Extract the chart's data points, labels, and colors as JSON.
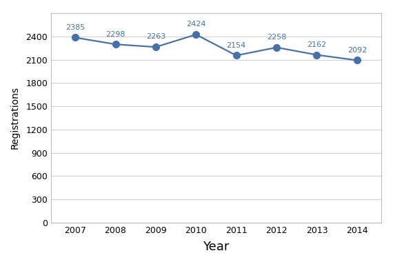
{
  "years": [
    2007,
    2008,
    2009,
    2010,
    2011,
    2012,
    2013,
    2014
  ],
  "values": [
    2385,
    2298,
    2263,
    2424,
    2154,
    2258,
    2162,
    2092
  ],
  "line_color": "#4472a8",
  "marker_color": "#4472a8",
  "xlabel": "Year",
  "ylabel": "Registrations",
  "ylim": [
    0,
    2700
  ],
  "yticks": [
    0,
    300,
    600,
    900,
    1200,
    1500,
    1800,
    2100,
    2400
  ],
  "background_color": "#ffffff",
  "plot_bg_color": "#ffffff",
  "grid_color": "#d0d0d0",
  "xlabel_fontsize": 13,
  "ylabel_fontsize": 10,
  "tick_fontsize": 9,
  "annotation_fontsize": 8,
  "annotation_color": "#4472a8",
  "marker_size": 7,
  "line_width": 1.6,
  "spine_color": "#bbbbbb"
}
